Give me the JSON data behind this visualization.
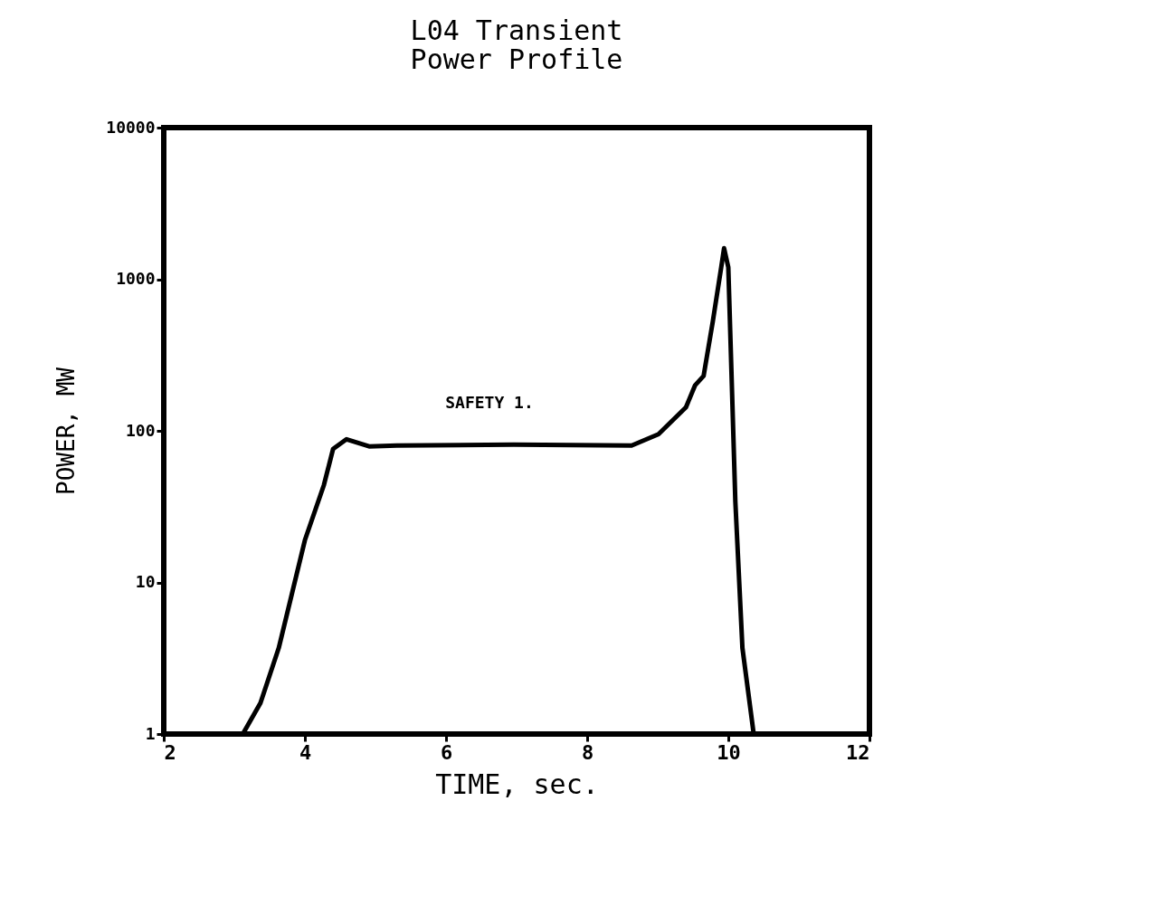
{
  "chart_data": {
    "type": "line",
    "title": "L04 Transient\nPower Profile",
    "xlabel": "TIME, sec.",
    "ylabel": "POWER, MW",
    "annotations": [
      "SAFETY 1."
    ],
    "log": "y",
    "grid": false,
    "marker": "none",
    "line_style": "solid",
    "xlim": [
      2,
      12
    ],
    "xticks": [
      2,
      4,
      6,
      8,
      10,
      12
    ],
    "ylim": [
      1,
      10000
    ],
    "yticks": [
      1,
      10,
      100,
      1000,
      10000
    ],
    "series": [
      {
        "color": "#000000",
        "x": [
          3.12,
          3.37,
          3.63,
          4.0,
          4.27,
          4.4,
          4.59,
          4.91,
          5.3,
          6.96,
          8.63,
          9.01,
          9.4,
          9.53,
          9.65,
          9.78,
          9.9,
          9.94,
          10.0,
          10.1,
          10.2,
          10.36
        ],
        "values": [
          1,
          1.6,
          3.7,
          19,
          44,
          76,
          88,
          79,
          80,
          81,
          80,
          95,
          143,
          200,
          230,
          525,
          1200,
          1600,
          1200,
          34,
          3.7,
          1
        ]
      }
    ]
  }
}
